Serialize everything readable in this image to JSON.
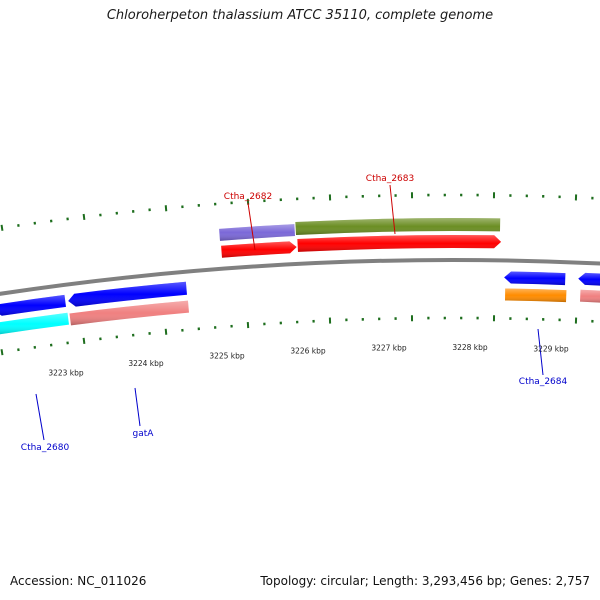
{
  "title": "Chloroherpeton thalassium ATCC 35110, complete genome",
  "footer": {
    "accession": "Accession: NC_011026",
    "summary": "Topology: circular; Length: 3,293,456 bp; Genes: 2,757"
  },
  "colors": {
    "backbone": "#808080",
    "tick": "#1e6e1e",
    "label_forward": "#cc0000",
    "label_reverse": "#0000cc"
  },
  "ticks": [
    {
      "label": "3223 kbp"
    },
    {
      "label": "3224 kbp"
    },
    {
      "label": "3225 kbp"
    },
    {
      "label": "3226 kbp"
    },
    {
      "label": "3227 kbp"
    },
    {
      "label": "3228 kbp"
    },
    {
      "label": "3229 kbp"
    }
  ],
  "gene_labels": [
    {
      "text": "Ctha_2682",
      "strand": "forward"
    },
    {
      "text": "Ctha_2683",
      "strand": "forward"
    },
    {
      "text": "Ctha_2680",
      "strand": "reverse"
    },
    {
      "text": "gatA",
      "strand": "reverse"
    },
    {
      "text": "Ctha_2684",
      "strand": "reverse"
    }
  ],
  "features": [
    {
      "name": "ctha-2682-cog",
      "strand": "forward",
      "color": "#7b68d8"
    },
    {
      "name": "ctha-2683-cog",
      "strand": "forward",
      "color": "#6b8e23"
    },
    {
      "name": "ctha-2682-cds",
      "strand": "forward",
      "color": "#ff0000"
    },
    {
      "name": "ctha-2683-cds",
      "strand": "forward",
      "color": "#ff0000"
    },
    {
      "name": "ctha-2680-cds",
      "strand": "reverse",
      "color": "#0000ff"
    },
    {
      "name": "gatA-cds",
      "strand": "reverse",
      "color": "#0000ff"
    },
    {
      "name": "ctha-2684-cds",
      "strand": "reverse",
      "color": "#0000ff"
    },
    {
      "name": "next-gene-cds",
      "strand": "reverse",
      "color": "#0000ff"
    },
    {
      "name": "ctha-2680-cog",
      "strand": "reverse",
      "color": "#00ffff"
    },
    {
      "name": "gatA-cog",
      "strand": "reverse",
      "color": "#f08080"
    },
    {
      "name": "ctha-2684-cog",
      "strand": "reverse",
      "color": "#ff8c00"
    },
    {
      "name": "next-gene-cog",
      "strand": "reverse",
      "color": "#f08080"
    }
  ]
}
